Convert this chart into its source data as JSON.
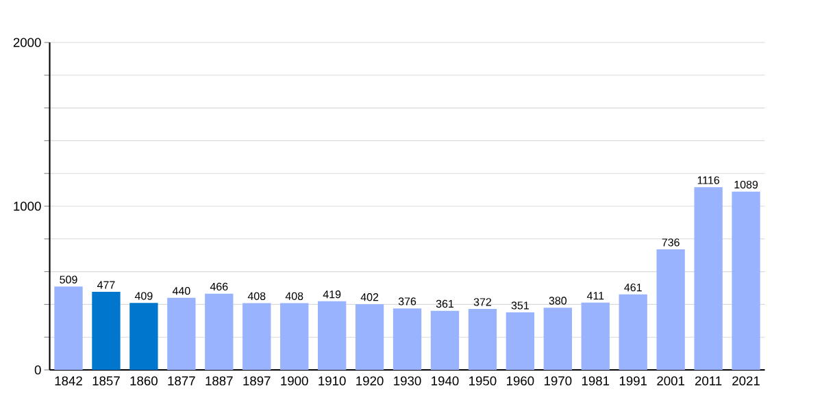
{
  "chart_data": {
    "type": "bar",
    "categories": [
      "1842",
      "1857",
      "1860",
      "1877",
      "1887",
      "1897",
      "1900",
      "1910",
      "1920",
      "1930",
      "1940",
      "1950",
      "1960",
      "1970",
      "1981",
      "1991",
      "2001",
      "2011",
      "2021"
    ],
    "values": [
      509,
      477,
      409,
      440,
      466,
      408,
      408,
      419,
      402,
      376,
      361,
      372,
      351,
      380,
      411,
      461,
      736,
      1116,
      1089
    ],
    "colors": [
      "#99b3ff",
      "#0077cc",
      "#0077cc",
      "#99b3ff",
      "#99b3ff",
      "#99b3ff",
      "#99b3ff",
      "#99b3ff",
      "#99b3ff",
      "#99b3ff",
      "#99b3ff",
      "#99b3ff",
      "#99b3ff",
      "#99b3ff",
      "#99b3ff",
      "#99b3ff",
      "#99b3ff",
      "#99b3ff",
      "#99b3ff"
    ],
    "ylim": [
      0,
      2000
    ],
    "yticks": [
      0,
      {
        "value": 200,
        "label": null
      },
      {
        "value": 400,
        "label": null
      },
      {
        "value": 600,
        "label": null
      },
      {
        "value": 800,
        "label": null
      },
      1000,
      {
        "value": 1200,
        "label": null
      },
      {
        "value": 1400,
        "label": null
      },
      {
        "value": 1600,
        "label": null
      },
      {
        "value": 1800,
        "label": null
      },
      2000
    ],
    "grid": true,
    "value_labels": [
      "509",
      "477",
      "409",
      "440",
      "466",
      "408",
      "408",
      "419",
      "402",
      "376",
      "361",
      "372",
      "351",
      "380",
      "411",
      "461",
      "736",
      "1116",
      "1089"
    ]
  }
}
